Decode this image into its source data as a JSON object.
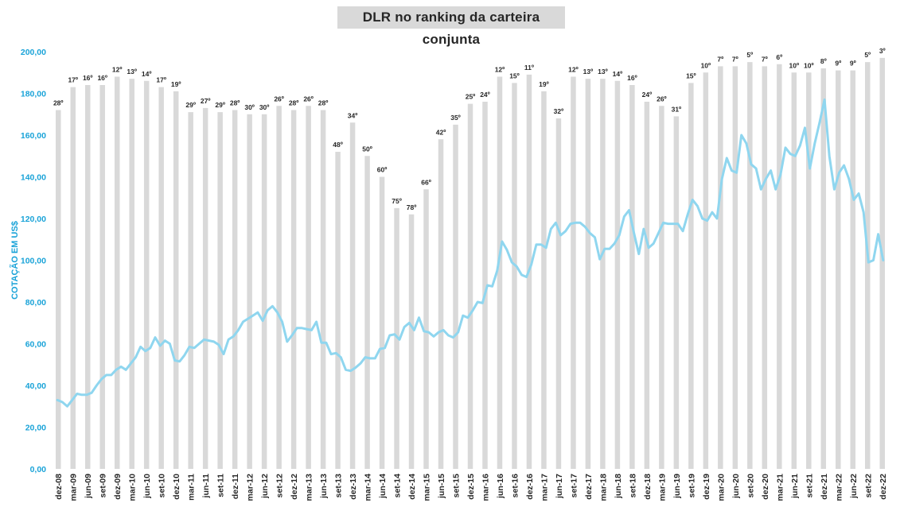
{
  "chart_data": {
    "type": "bar+line",
    "title": "DLR no ranking da carteira conjunta",
    "ylabel": "COTAÇÃO EM US$",
    "ylim": [
      0,
      200
    ],
    "yticks": [
      "0,00",
      "20,00",
      "40,00",
      "60,00",
      "80,00",
      "100,00",
      "120,00",
      "140,00",
      "160,00",
      "180,00",
      "200,00"
    ],
    "xtick_labels": [
      "dez-08",
      "mar-09",
      "jun-09",
      "set-09",
      "dez-09",
      "mar-10",
      "jun-10",
      "set-10",
      "dez-10",
      "mar-11",
      "jun-11",
      "set-11",
      "dez-11",
      "mar-12",
      "jun-12",
      "set-12",
      "dez-12",
      "mar-13",
      "jun-13",
      "set-13",
      "dez-13",
      "mar-14",
      "jun-14",
      "set-14",
      "dez-14",
      "mar-15",
      "jun-15",
      "set-15",
      "dez-15",
      "mar-16",
      "jun-16",
      "set-16",
      "dez-16",
      "mar-17",
      "jun-17",
      "set-17",
      "dez-17",
      "mar-18",
      "jun-18",
      "set-18",
      "dez-18",
      "mar-19",
      "jun-19",
      "set-19",
      "dez-19",
      "mar-20",
      "jun-20",
      "set-20",
      "dez-20",
      "mar-21",
      "jun-21",
      "set-21",
      "dez-21",
      "mar-22",
      "jun-22",
      "set-22",
      "dez-22"
    ],
    "rank_labels": [
      "28º",
      "17º",
      "16º",
      "16º",
      "12º",
      "13º",
      "14º",
      "17º",
      "19º",
      "29º",
      "27º",
      "29º",
      "28º",
      "30º",
      "30º",
      "26º",
      "28º",
      "26º",
      "28º",
      "48º",
      "34º",
      "50º",
      "60º",
      "75º",
      "78º",
      "66º",
      "42º",
      "35º",
      "25º",
      "24º",
      "12º",
      "15º",
      "11º",
      "19º",
      "32º",
      "12º",
      "13º",
      "13º",
      "14º",
      "16º",
      "24º",
      "26º",
      "31º",
      "15º",
      "10º",
      "7º",
      "7º",
      "5º",
      "7º",
      "6º",
      "10º",
      "10º",
      "8º",
      "9º",
      "9º",
      "5º",
      "3º"
    ],
    "series": [
      {
        "name": "ranking",
        "kind": "bar",
        "values": [
          172,
          183,
          184,
          184,
          188,
          187,
          186,
          183,
          181,
          171,
          173,
          171,
          172,
          170,
          170,
          174,
          172,
          174,
          172,
          152,
          166,
          150,
          140,
          125,
          122,
          134,
          158,
          165,
          175,
          176,
          188,
          185,
          189,
          181,
          168,
          188,
          187,
          187,
          186,
          184,
          176,
          174,
          169,
          185,
          190,
          193,
          193,
          195,
          193,
          194,
          190,
          190,
          192,
          191,
          191,
          195,
          197
        ]
      },
      {
        "name": "cotação",
        "kind": "line",
        "values": [
          33,
          32,
          30,
          33,
          36,
          35.5,
          35.5,
          36.5,
          40,
          43,
          45,
          45,
          47.5,
          49,
          47.5,
          50.5,
          53.5,
          58.5,
          56.5,
          58,
          63,
          59,
          61.5,
          60,
          52,
          51.5,
          54.5,
          58.5,
          58,
          60,
          62,
          61.5,
          61,
          59.5,
          55,
          62,
          63.5,
          66.5,
          70.5,
          72,
          73.5,
          75,
          71,
          76,
          78,
          75,
          70.5,
          61,
          64,
          67.5,
          67.5,
          67,
          66.5,
          70.5,
          60.5,
          60.5,
          55,
          55.5,
          53.5,
          47.5,
          47,
          48.5,
          50.5,
          53.5,
          53,
          53,
          57.5,
          58,
          64,
          64.5,
          62,
          68,
          70,
          66.5,
          72.5,
          66,
          65.5,
          63.5,
          65.5,
          66.5,
          64,
          63,
          65.5,
          73.5,
          72.5,
          76,
          80,
          79.5,
          88,
          87.5,
          95,
          109,
          105,
          99,
          97,
          93,
          92,
          98,
          107.5,
          107.5,
          106,
          115,
          118,
          112,
          114,
          117.5,
          118,
          118,
          116,
          113,
          111,
          100.5,
          105.5,
          105.5,
          108,
          112,
          121,
          124,
          113,
          103,
          115,
          106,
          108,
          113,
          118,
          117.5,
          117.5,
          117.5,
          114,
          122,
          129,
          126,
          120,
          119,
          123,
          120,
          139,
          149,
          143,
          142,
          160,
          156,
          146,
          144,
          134,
          139,
          143,
          134,
          141,
          154,
          151,
          150,
          155,
          163.5,
          144,
          156,
          166,
          177,
          150,
          134,
          142,
          145.5,
          139,
          129,
          132,
          123,
          99,
          100,
          112.5,
          100
        ]
      }
    ]
  }
}
